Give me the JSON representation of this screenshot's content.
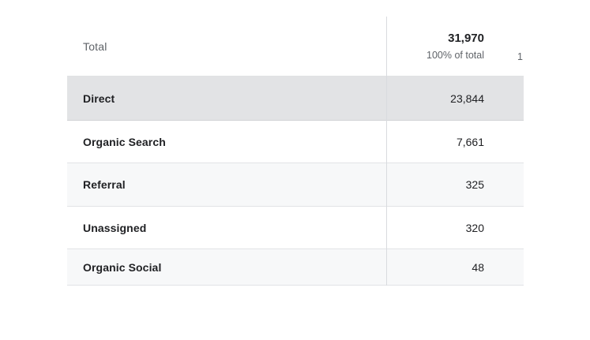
{
  "table": {
    "header": {
      "dimension_label": "Total",
      "metric_value": "31,970",
      "metric_caption": "100% of total",
      "next_column_clipped_text": "1"
    },
    "rows": [
      {
        "label": "Direct",
        "value": "23,844",
        "highlighted": true
      },
      {
        "label": "Organic Search",
        "value": "7,661",
        "highlighted": false
      },
      {
        "label": "Referral",
        "value": "325",
        "highlighted": false
      },
      {
        "label": "Unassigned",
        "value": "320",
        "highlighted": false
      },
      {
        "label": "Organic Social",
        "value": "48",
        "highlighted": false
      }
    ],
    "colors": {
      "highlight_row_bg": "#e2e3e5",
      "zebra_row_bg": "#f7f8f9",
      "row_border": "#e2e3e6",
      "column_divider": "#d9dbdf",
      "text_primary": "#202124",
      "text_secondary": "#5f6368"
    }
  }
}
